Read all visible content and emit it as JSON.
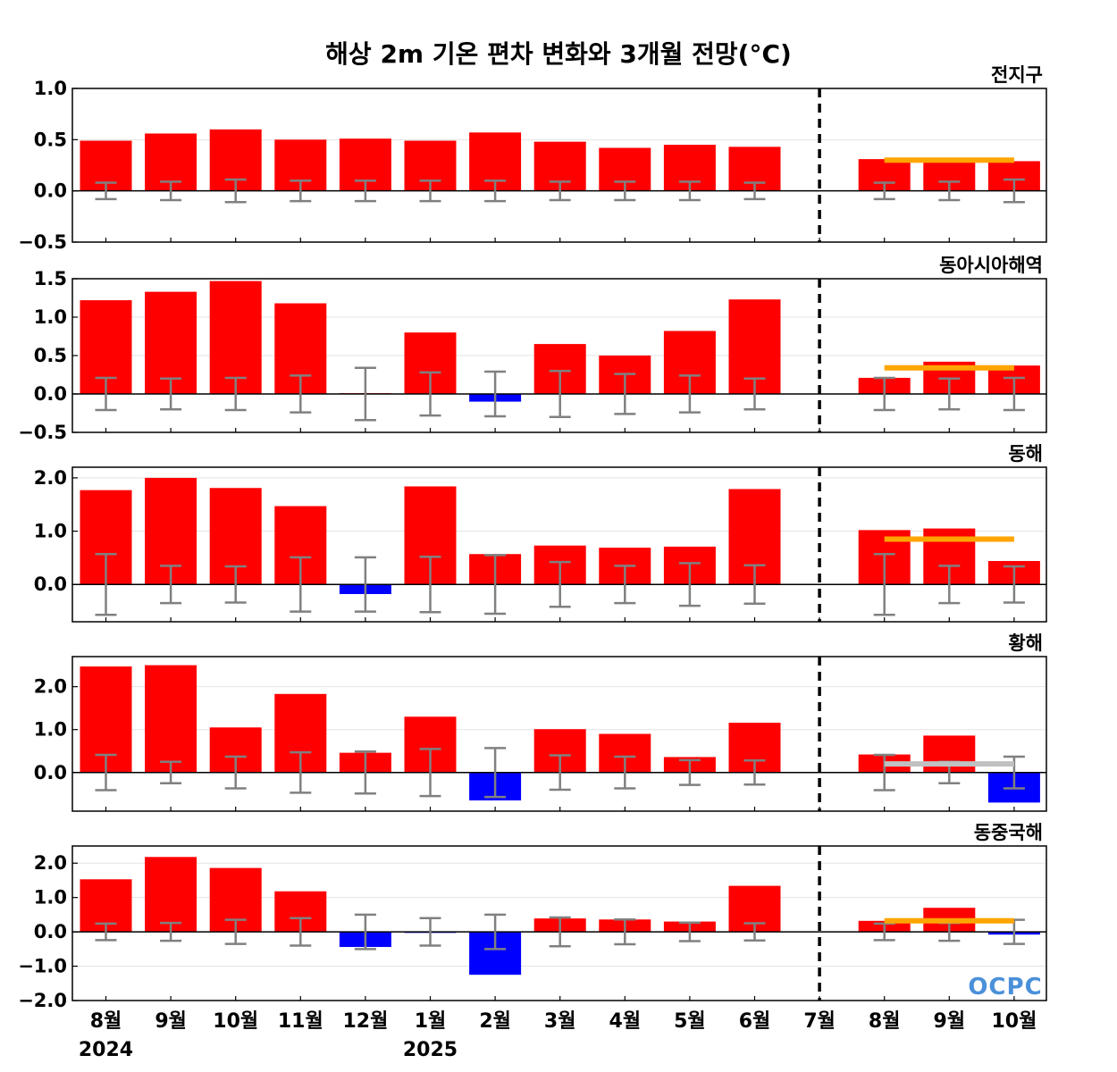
{
  "title": "해상 2m 기온 편차 변화와 3개월 전망(°C)",
  "logo_text": "OCPC",
  "colors": {
    "positive": "#ff0000",
    "negative": "#0000ff",
    "error_bar": "#808080",
    "forecast_above": "#ffa500",
    "forecast_normal": "#c0c0c0",
    "divider": "#000000"
  },
  "chart_data": {
    "type": "bar",
    "categories": [
      "8월",
      "9월",
      "10월",
      "11월",
      "12월",
      "1월",
      "2월",
      "3월",
      "4월",
      "5월",
      "6월",
      "7월",
      "8월",
      "9월",
      "10월"
    ],
    "year_labels": [
      {
        "index": 0,
        "label": "2024"
      },
      {
        "index": 5,
        "label": "2025"
      }
    ],
    "observed_through": "6월",
    "divider_at": "7월",
    "panels": [
      {
        "name": "전지구",
        "ylim": [
          -0.5,
          1.0
        ],
        "yticks": [
          -0.5,
          0.0,
          0.5,
          1.0
        ],
        "ytick_labels": [
          "−0.5",
          "0.0",
          "0.5",
          "1.0"
        ],
        "values": [
          0.49,
          0.56,
          0.6,
          0.5,
          0.51,
          0.49,
          0.57,
          0.48,
          0.42,
          0.45,
          0.43,
          0.0,
          0.31,
          0.32,
          0.29
        ],
        "error": [
          0.08,
          0.09,
          0.11,
          0.1,
          0.1,
          0.1,
          0.1,
          0.09,
          0.09,
          0.09,
          0.08,
          null,
          0.08,
          0.09,
          0.11
        ],
        "forecast": {
          "value": 0.3,
          "color": "#ffa500"
        }
      },
      {
        "name": "동아시아해역",
        "ylim": [
          -0.5,
          1.5
        ],
        "yticks": [
          -0.5,
          0.0,
          0.5,
          1.0,
          1.5
        ],
        "ytick_labels": [
          "−0.5",
          "0.0",
          "0.5",
          "1.0",
          "1.5"
        ],
        "values": [
          1.22,
          1.33,
          1.47,
          1.18,
          0.01,
          0.8,
          -0.1,
          0.65,
          0.5,
          0.82,
          1.23,
          0.0,
          0.21,
          0.42,
          0.37
        ],
        "error": [
          0.21,
          0.2,
          0.21,
          0.24,
          0.34,
          0.28,
          0.29,
          0.3,
          0.26,
          0.24,
          0.2,
          null,
          0.21,
          0.2,
          0.21
        ],
        "forecast": {
          "value": 0.34,
          "color": "#ffa500"
        }
      },
      {
        "name": "동해",
        "ylim": [
          -0.7,
          2.2
        ],
        "yticks": [
          0.0,
          1.0,
          2.0
        ],
        "ytick_labels": [
          "0.0",
          "1.0",
          "2.0"
        ],
        "values": [
          1.77,
          2.0,
          1.81,
          1.47,
          -0.18,
          1.84,
          0.57,
          0.73,
          0.69,
          0.71,
          1.79,
          0.0,
          1.02,
          1.05,
          0.44
        ],
        "error": [
          0.57,
          0.35,
          0.34,
          0.51,
          0.51,
          0.52,
          0.55,
          0.42,
          0.35,
          0.4,
          0.36,
          null,
          0.57,
          0.35,
          0.34
        ],
        "forecast": {
          "value": 0.85,
          "color": "#ffa500"
        }
      },
      {
        "name": "황해",
        "ylim": [
          -0.9,
          2.7
        ],
        "yticks": [
          0.0,
          1.0,
          2.0
        ],
        "ytick_labels": [
          "0.0",
          "1.0",
          "2.0"
        ],
        "values": [
          2.47,
          2.5,
          1.05,
          1.83,
          0.46,
          1.3,
          -0.65,
          1.01,
          0.9,
          0.36,
          1.16,
          0.0,
          0.42,
          0.86,
          -0.7
        ],
        "error": [
          0.41,
          0.25,
          0.37,
          0.47,
          0.49,
          0.55,
          0.57,
          0.4,
          0.37,
          0.29,
          0.28,
          null,
          0.41,
          0.25,
          0.37
        ],
        "forecast": {
          "value": 0.2,
          "color": "#c0c0c0"
        }
      },
      {
        "name": "동중국해",
        "ylim": [
          -2.0,
          2.5
        ],
        "yticks": [
          -2.0,
          -1.0,
          0.0,
          1.0,
          2.0
        ],
        "ytick_labels": [
          "−2.0",
          "−1.0",
          "0.0",
          "1.0",
          "2.0"
        ],
        "values": [
          1.53,
          2.18,
          1.86,
          1.18,
          -0.44,
          -0.03,
          -1.25,
          0.39,
          0.36,
          0.3,
          1.34,
          0.0,
          0.32,
          0.7,
          -0.08
        ],
        "error": [
          0.24,
          0.26,
          0.35,
          0.4,
          0.5,
          0.4,
          0.5,
          0.42,
          0.36,
          0.27,
          0.25,
          null,
          0.24,
          0.26,
          0.35
        ],
        "forecast": {
          "value": 0.32,
          "color": "#ffa500"
        }
      }
    ]
  }
}
